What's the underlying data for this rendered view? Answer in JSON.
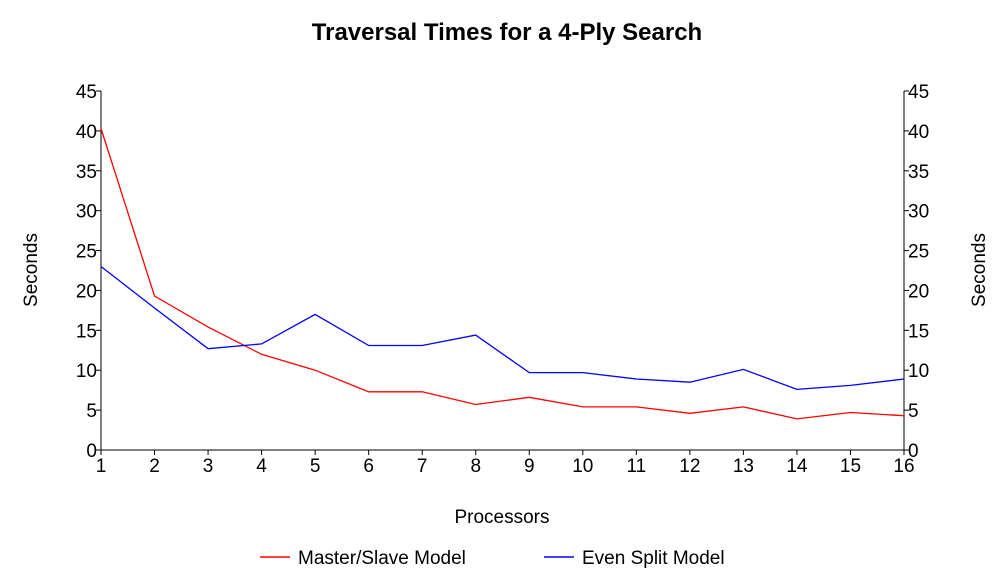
{
  "chart_data": {
    "type": "line",
    "title": "Traversal Times for a 4-Ply Search",
    "xlabel": "Processors",
    "ylabel": "Seconds",
    "ylabel_right": "Seconds",
    "x": [
      1,
      2,
      3,
      4,
      5,
      6,
      7,
      8,
      9,
      10,
      11,
      12,
      13,
      14,
      15,
      16
    ],
    "xlim": [
      1,
      16
    ],
    "ylim": [
      0,
      45
    ],
    "yticks": [
      0,
      5,
      10,
      15,
      20,
      25,
      30,
      35,
      40,
      45
    ],
    "grid": false,
    "legend_position": "bottom",
    "series": [
      {
        "name": "Master/Slave Model",
        "color": "#ff0000",
        "values": [
          40.3,
          19.3,
          15.4,
          12.0,
          10.0,
          7.3,
          7.3,
          5.7,
          6.6,
          5.4,
          5.4,
          4.6,
          5.4,
          3.9,
          4.7,
          4.3
        ]
      },
      {
        "name": "Even Split Model",
        "color": "#0000ff",
        "values": [
          23.0,
          17.8,
          12.7,
          13.3,
          17.0,
          13.1,
          13.1,
          14.4,
          9.7,
          9.7,
          8.9,
          8.5,
          10.1,
          7.6,
          8.1,
          8.9
        ]
      }
    ]
  }
}
